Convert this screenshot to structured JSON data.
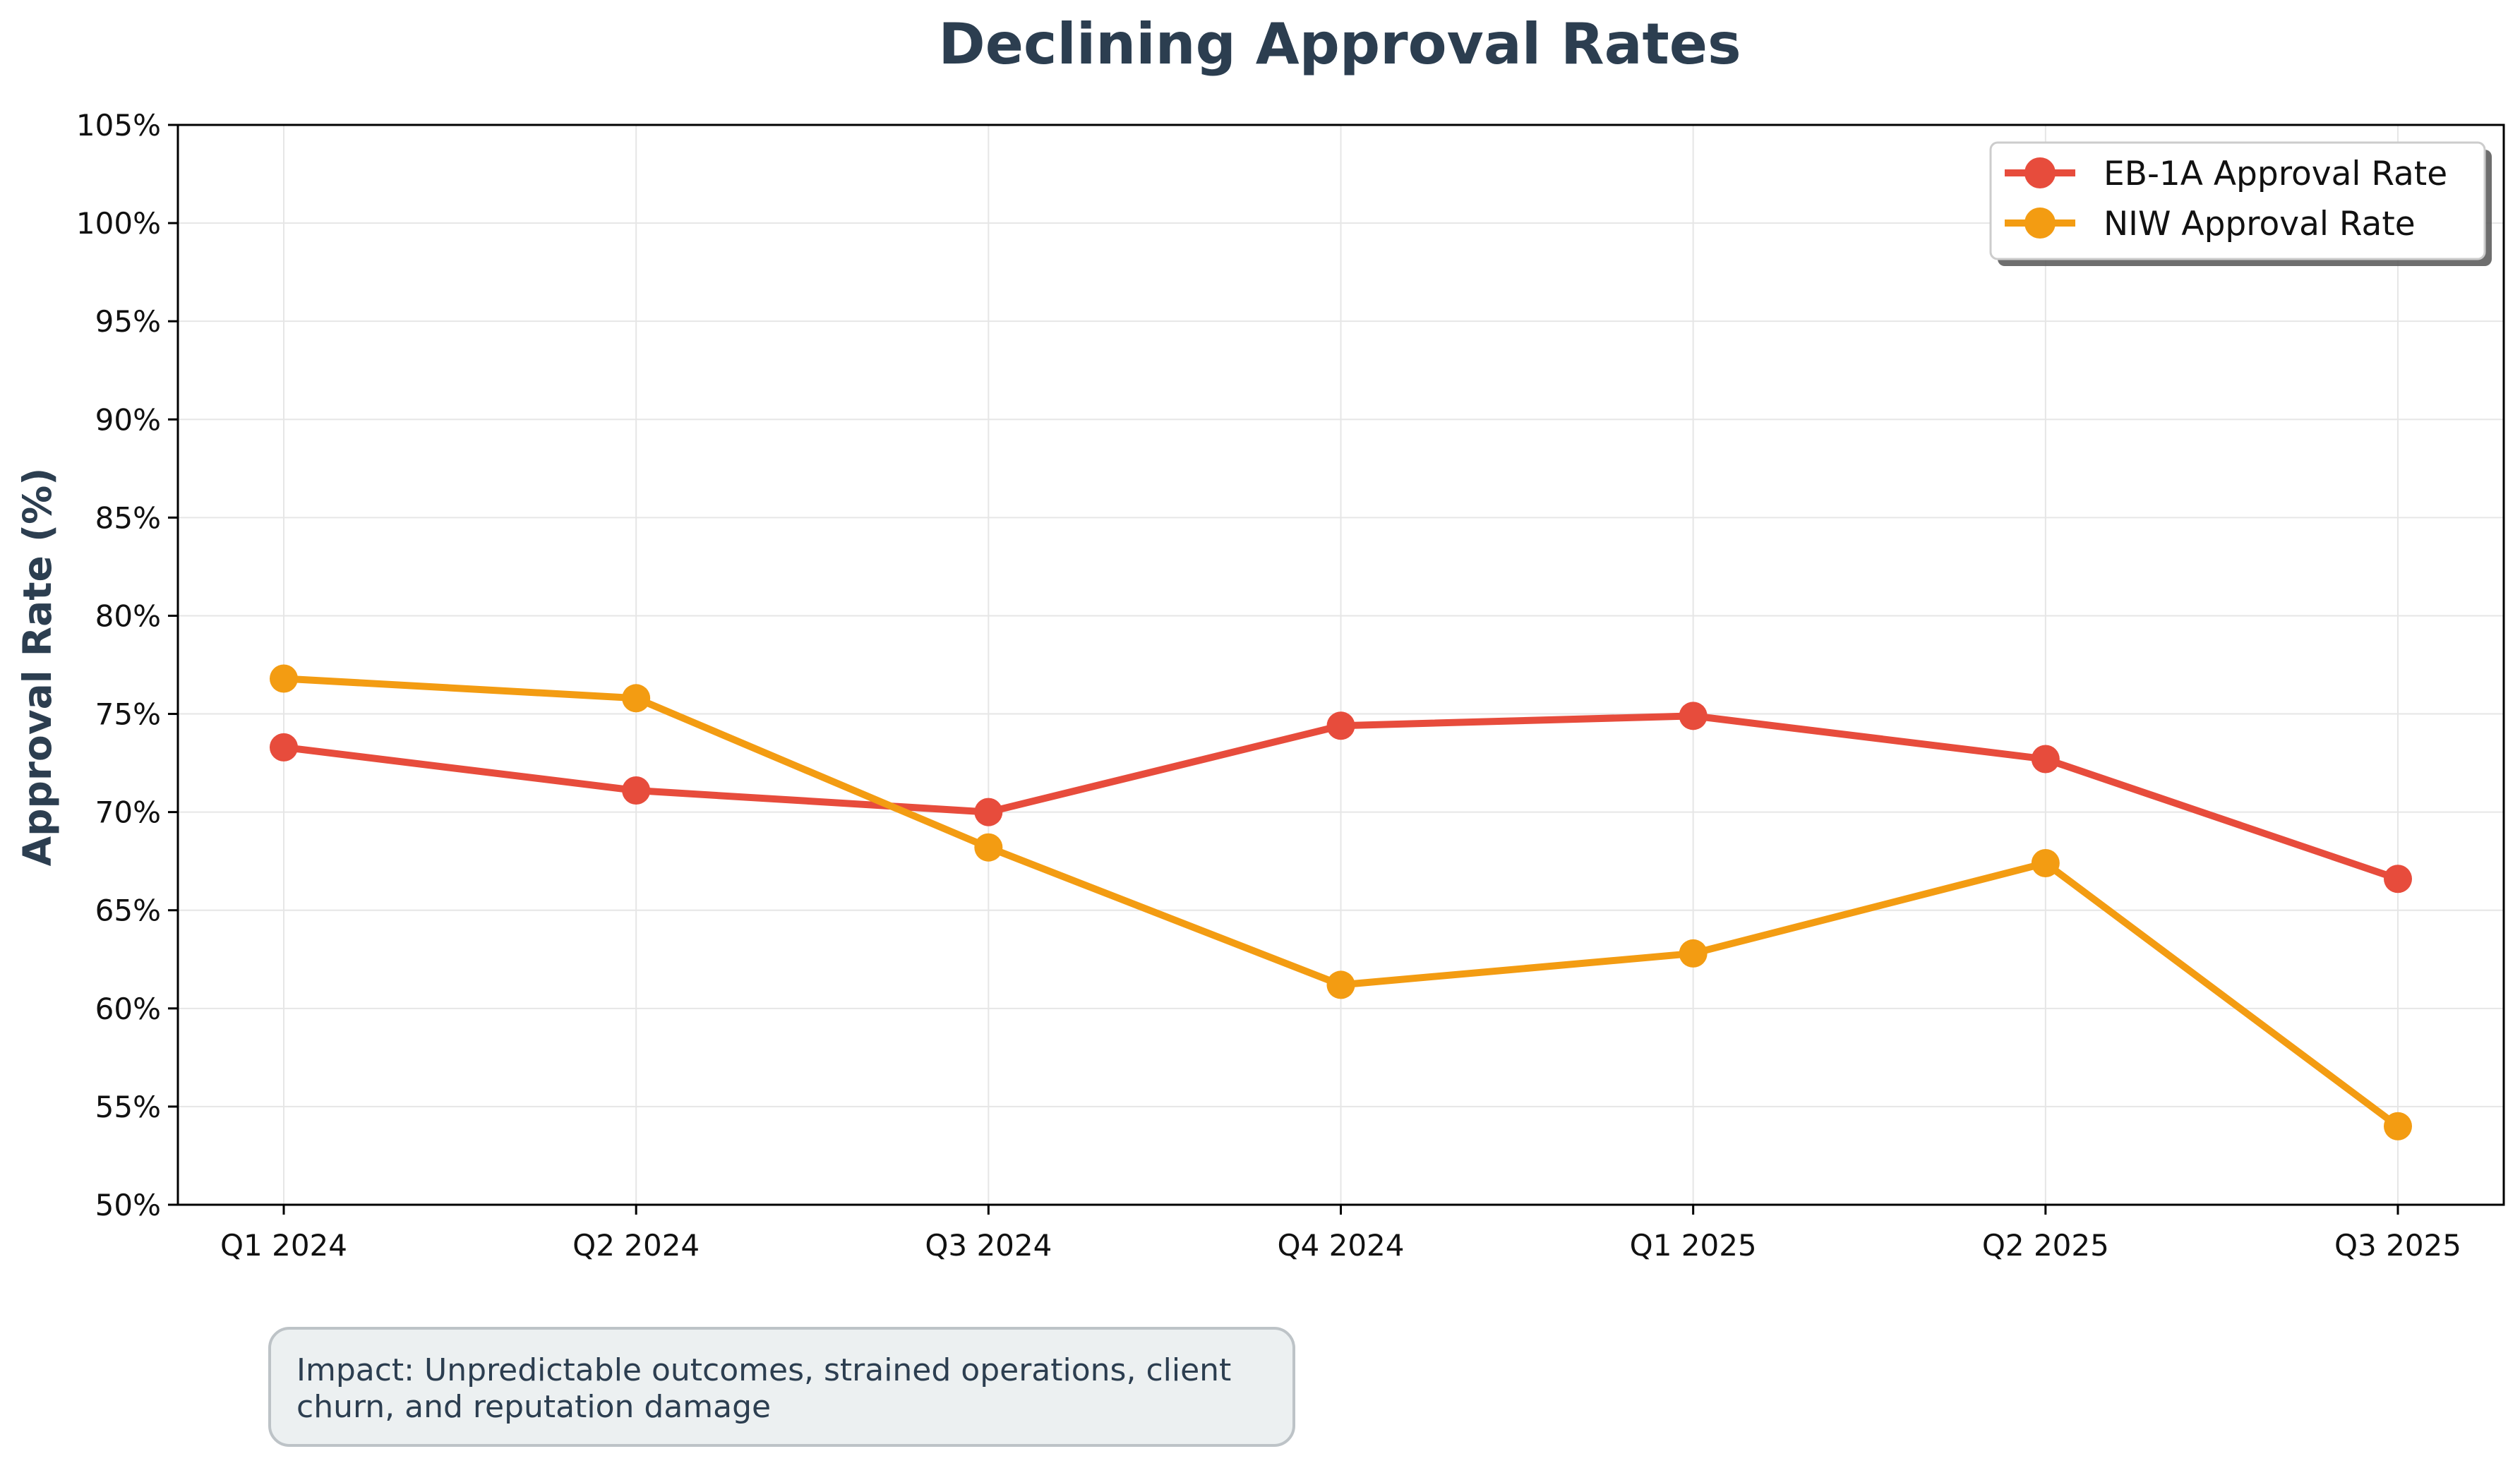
{
  "chart_data": {
    "type": "line",
    "title": "Declining Approval Rates",
    "xlabel": "",
    "ylabel": "Approval Rate (%)",
    "categories": [
      "Q1 2024",
      "Q2 2024",
      "Q3 2024",
      "Q4 2024",
      "Q1 2025",
      "Q2 2025",
      "Q3 2025"
    ],
    "ylim": [
      50,
      105
    ],
    "yticks": [
      50,
      55,
      60,
      65,
      70,
      75,
      80,
      85,
      90,
      95,
      100,
      105
    ],
    "ytick_labels": [
      "50%",
      "55%",
      "60%",
      "65%",
      "70%",
      "75%",
      "80%",
      "85%",
      "90%",
      "95%",
      "100%",
      "105%"
    ],
    "grid": true,
    "legend_position": "top-right",
    "series": [
      {
        "name": "EB-1A Approval Rate",
        "color": "#e74c3c",
        "values": [
          73.3,
          71.1,
          70.0,
          74.4,
          74.9,
          72.7,
          66.6
        ]
      },
      {
        "name": "NIW Approval Rate",
        "color": "#f39c12",
        "values": [
          76.8,
          75.8,
          68.2,
          61.2,
          62.8,
          67.4,
          54.0
        ]
      }
    ]
  },
  "annotation": {
    "text_line1": "Impact: Unpredictable outcomes, strained operations, client",
    "text_line2": "churn, and reputation damage"
  }
}
